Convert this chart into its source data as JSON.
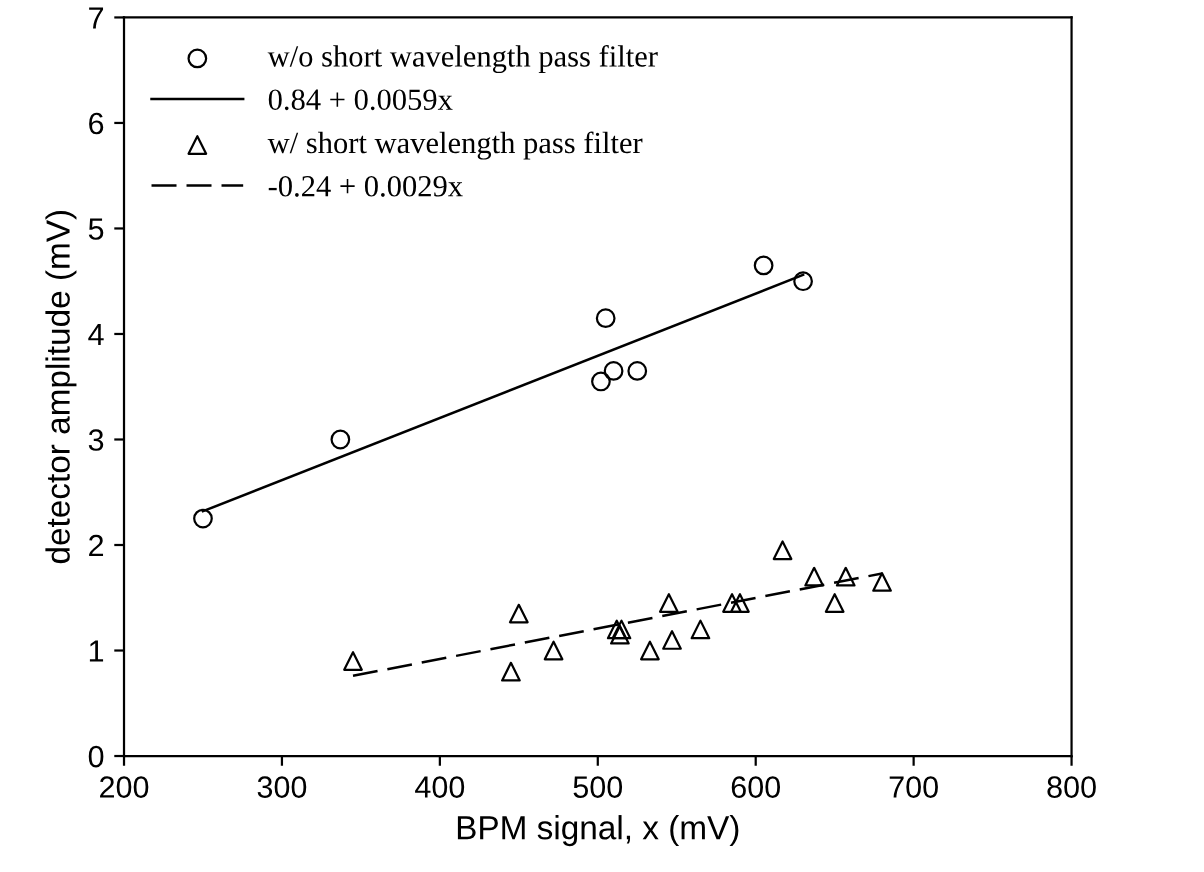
{
  "chart_data": {
    "type": "scatter",
    "xlabel": "BPM signal, x (mV)",
    "ylabel": "detector amplitude (mV)",
    "xlim": [
      200,
      800
    ],
    "xticks": [
      200,
      300,
      400,
      500,
      600,
      700,
      800
    ],
    "ylim": [
      0,
      7
    ],
    "yticks": [
      0,
      1,
      2,
      3,
      4,
      5,
      6,
      7
    ],
    "grid": false,
    "legend": "top left",
    "series": [
      {
        "name": "w/o short wavelength pass filter",
        "type": "scatter",
        "marker": "circle",
        "color": "#000000",
        "x": [
          250,
          337,
          502,
          505,
          510,
          525,
          605,
          630
        ],
        "values": [
          2.25,
          3.0,
          3.55,
          4.15,
          3.65,
          3.65,
          4.65,
          4.5
        ]
      },
      {
        "name": "0.84 + 0.0059x",
        "type": "line",
        "line_style": "solid",
        "marker": "none",
        "color": "#000000",
        "x": [
          250,
          630
        ],
        "values": [
          2.32,
          4.56
        ]
      },
      {
        "name": "w/ short wavelength pass filter",
        "type": "scatter",
        "marker": "triangle",
        "color": "#000000",
        "x": [
          345,
          445,
          450,
          472,
          512,
          514,
          515,
          533,
          545,
          547,
          565,
          585,
          590,
          617,
          637,
          650,
          657,
          680
        ],
        "values": [
          0.9,
          0.8,
          1.35,
          1.0,
          1.2,
          1.15,
          1.2,
          1.0,
          1.45,
          1.1,
          1.2,
          1.45,
          1.45,
          1.95,
          1.7,
          1.45,
          1.7,
          1.65
        ]
      },
      {
        "name": "-0.24 + 0.0029x",
        "type": "line",
        "line_style": "dashed",
        "marker": "none",
        "color": "#000000",
        "x": [
          345,
          680
        ],
        "values": [
          0.76,
          1.73
        ]
      }
    ]
  }
}
